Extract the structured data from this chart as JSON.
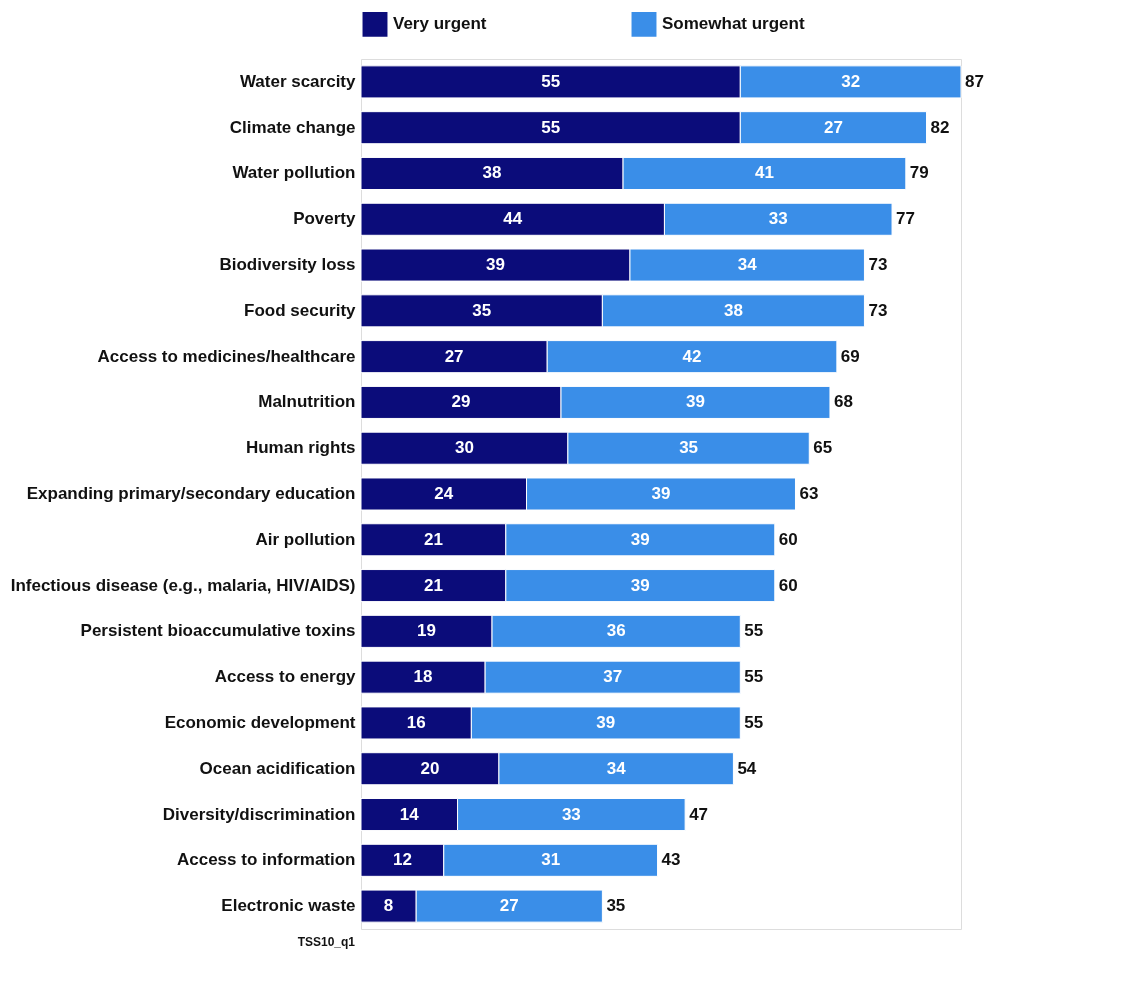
{
  "chart_data": {
    "type": "bar",
    "orientation": "horizontal",
    "stacked": true,
    "data_labels": true,
    "legend": "top",
    "tick_labels": "y",
    "categories": [
      "Water scarcity",
      "Climate change",
      "Water pollution",
      "Poverty",
      "Biodiversity loss",
      "Food security",
      "Access to medicines/healthcare",
      "Malnutrition",
      "Human rights",
      "Expanding primary/secondary education",
      "Air pollution",
      "Infectious disease (e.g., malaria, HIV/AIDS)",
      "Persistent bioaccumulative toxins",
      "Access to energy",
      "Economic development",
      "Ocean acidification",
      "Diversity/discrimination",
      "Access to information",
      "Electronic waste"
    ],
    "series": [
      {
        "name": "Very urgent",
        "color": "#0b0c7a",
        "values": [
          55,
          55,
          38,
          44,
          39,
          35,
          27,
          29,
          30,
          24,
          21,
          21,
          19,
          18,
          16,
          20,
          14,
          12,
          8
        ]
      },
      {
        "name": "Somewhat urgent",
        "color": "#3a8ee8",
        "values": [
          32,
          27,
          41,
          33,
          34,
          38,
          42,
          39,
          35,
          39,
          39,
          39,
          36,
          37,
          39,
          34,
          33,
          31,
          27
        ]
      }
    ],
    "totals": [
      "87",
      "82",
      "79",
      "77",
      "73",
      "73",
      "69",
      "68",
      "65",
      "63",
      "60",
      "60",
      "55",
      "55",
      "55",
      "54",
      "47",
      "43",
      "35"
    ],
    "annotations": [
      "TSS10_q1"
    ]
  }
}
